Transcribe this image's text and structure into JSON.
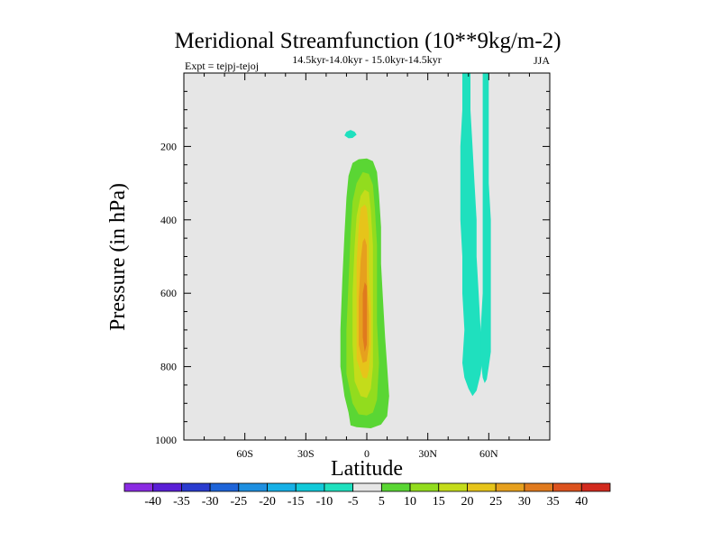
{
  "chart_data": {
    "type": "contour",
    "title": "Meridional Streamfunction (10**9kg/m-2)",
    "left_string": "Expt = tejpj-tejoj",
    "center_string": "14.5kyr-14.0kyr - 15.0kyr-14.5kyr",
    "right_string": "JJA",
    "xlabel": "Latitude",
    "ylabel": "Pressure (in hPa)",
    "xlim": [
      -90,
      90
    ],
    "ylim": [
      1000,
      0
    ],
    "x_ticks": [
      -60,
      -30,
      0,
      30,
      60
    ],
    "x_tick_labels": [
      "60S",
      "30S",
      "0",
      "30N",
      "60N"
    ],
    "y_ticks": [
      200,
      400,
      600,
      800,
      1000
    ],
    "y_tick_labels": [
      "200",
      "400",
      "600",
      "800",
      "1000"
    ],
    "background_color": "#e6e6e6",
    "colorbar": {
      "labels": [
        "-40",
        "-35",
        "-30",
        "-25",
        "-20",
        "-15",
        "-10",
        "-5",
        "5",
        "10",
        "15",
        "20",
        "25",
        "30",
        "35",
        "40"
      ],
      "colors": [
        "#8a2be2",
        "#5a1fd6",
        "#2a3ccf",
        "#1e64d8",
        "#1e8fe0",
        "#16b0e6",
        "#11c9d9",
        "#1fe0be",
        "#e6e6e6",
        "#5ad634",
        "#92dc1e",
        "#c4dc1a",
        "#e6c41a",
        "#e6a01e",
        "#e07a1e",
        "#dc521e",
        "#d22a1e"
      ]
    },
    "features": [
      {
        "level": 5,
        "color": "#5ad634",
        "poly": [
          [
            -5,
            965
          ],
          [
            -8,
            960
          ],
          [
            -9,
            925
          ],
          [
            -11,
            880
          ],
          [
            -13,
            800
          ],
          [
            -13,
            700
          ],
          [
            -12,
            560
          ],
          [
            -11,
            440
          ],
          [
            -10,
            340
          ],
          [
            -9,
            280
          ],
          [
            -7,
            245
          ],
          [
            -4,
            235
          ],
          [
            0,
            233
          ],
          [
            3,
            240
          ],
          [
            5,
            270
          ],
          [
            6,
            330
          ],
          [
            7,
            420
          ],
          [
            7,
            520
          ],
          [
            8,
            620
          ],
          [
            9,
            720
          ],
          [
            10,
            800
          ],
          [
            11,
            880
          ],
          [
            10,
            935
          ],
          [
            7,
            958
          ],
          [
            2,
            968
          ]
        ]
      },
      {
        "level": 10,
        "color": "#92dc1e",
        "poly": [
          [
            -4,
            930
          ],
          [
            -7,
            900
          ],
          [
            -10,
            820
          ],
          [
            -10,
            700
          ],
          [
            -9,
            570
          ],
          [
            -8,
            440
          ],
          [
            -7,
            350
          ],
          [
            -5,
            300
          ],
          [
            -2,
            270
          ],
          [
            1,
            275
          ],
          [
            3,
            305
          ],
          [
            4,
            370
          ],
          [
            5,
            470
          ],
          [
            5,
            580
          ],
          [
            5,
            680
          ],
          [
            6,
            790
          ],
          [
            5,
            890
          ],
          [
            3,
            925
          ],
          [
            0,
            933
          ]
        ]
      },
      {
        "level": 15,
        "color": "#c4dc1a",
        "poly": [
          [
            -3,
            880
          ],
          [
            -6,
            840
          ],
          [
            -7,
            740
          ],
          [
            -7,
            600
          ],
          [
            -6,
            470
          ],
          [
            -5,
            390
          ],
          [
            -3,
            335
          ],
          [
            -1,
            318
          ],
          [
            1,
            325
          ],
          [
            2,
            375
          ],
          [
            3,
            470
          ],
          [
            3,
            580
          ],
          [
            3,
            690
          ],
          [
            3,
            800
          ],
          [
            2,
            860
          ],
          [
            0,
            885
          ]
        ]
      },
      {
        "level": 20,
        "color": "#e6c41a",
        "poly": [
          [
            -2,
            830
          ],
          [
            -5,
            780
          ],
          [
            -5,
            660
          ],
          [
            -5,
            520
          ],
          [
            -4,
            420
          ],
          [
            -3,
            368
          ],
          [
            -1,
            358
          ],
          [
            0,
            368
          ],
          [
            1,
            430
          ],
          [
            1,
            540
          ],
          [
            2,
            640
          ],
          [
            2,
            740
          ],
          [
            1,
            810
          ],
          [
            0,
            832
          ]
        ]
      },
      {
        "level": 25,
        "color": "#e6a01e",
        "poly": [
          [
            -2,
            790
          ],
          [
            -4,
            740
          ],
          [
            -4,
            620
          ],
          [
            -3,
            510
          ],
          [
            -2,
            460
          ],
          [
            -1,
            450
          ],
          [
            0,
            470
          ],
          [
            0,
            560
          ],
          [
            1,
            660
          ],
          [
            1,
            740
          ],
          [
            0,
            785
          ]
        ]
      },
      {
        "level": 30,
        "color": "#e07a1e",
        "poly": [
          [
            -1,
            760
          ],
          [
            -2,
            720
          ],
          [
            -2,
            650
          ],
          [
            -2,
            600
          ],
          [
            -1,
            570
          ],
          [
            0,
            580
          ],
          [
            0,
            640
          ],
          [
            0,
            700
          ],
          [
            0,
            740
          ]
        ]
      },
      {
        "level": -5,
        "color": "#1fe0be",
        "poly": [
          [
            47,
            0
          ],
          [
            51,
            0
          ],
          [
            51,
            100
          ],
          [
            52,
            200
          ],
          [
            53,
            300
          ],
          [
            54,
            400
          ],
          [
            54,
            500
          ],
          [
            55,
            600
          ],
          [
            56,
            700
          ],
          [
            57,
            770
          ],
          [
            56,
            820
          ],
          [
            54,
            865
          ],
          [
            52,
            880
          ],
          [
            50,
            860
          ],
          [
            48,
            830
          ],
          [
            47,
            790
          ],
          [
            48,
            700
          ],
          [
            47,
            600
          ],
          [
            47,
            500
          ],
          [
            46,
            400
          ],
          [
            46,
            300
          ],
          [
            46,
            200
          ],
          [
            47,
            100
          ]
        ]
      },
      {
        "level": -5,
        "color": "#1fe0be",
        "poly": [
          [
            57,
            0
          ],
          [
            60,
            0
          ],
          [
            60,
            100
          ],
          [
            60,
            200
          ],
          [
            60,
            300
          ],
          [
            61,
            400
          ],
          [
            61,
            500
          ],
          [
            61,
            600
          ],
          [
            61,
            700
          ],
          [
            61,
            760
          ],
          [
            60,
            800
          ],
          [
            59,
            835
          ],
          [
            58,
            845
          ],
          [
            57,
            830
          ],
          [
            56,
            780
          ],
          [
            56,
            700
          ],
          [
            57,
            600
          ],
          [
            57,
            500
          ],
          [
            57,
            400
          ],
          [
            57,
            300
          ],
          [
            57,
            200
          ],
          [
            57,
            100
          ]
        ]
      },
      {
        "level": -5,
        "color": "#1fe0be",
        "poly": [
          [
            -10,
            160
          ],
          [
            -8,
            155
          ],
          [
            -6,
            160
          ],
          [
            -5,
            168
          ],
          [
            -7,
            177
          ],
          [
            -9,
            178
          ],
          [
            -11,
            170
          ]
        ]
      }
    ]
  }
}
